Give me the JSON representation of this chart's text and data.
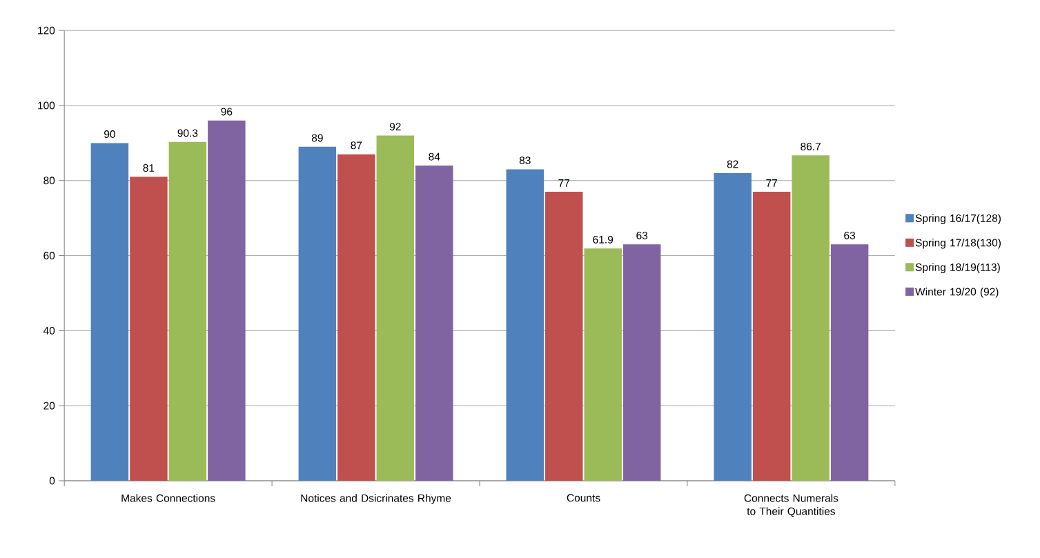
{
  "chart_data": {
    "type": "bar",
    "categories": [
      "Makes Connections",
      "Notices and Dsicrinates Rhyme",
      "Counts",
      "Connects Numerals to Their Quantities"
    ],
    "series": [
      {
        "name": "Spring 16/17(128)",
        "color": "#4f81bd",
        "values": [
          90,
          89,
          83,
          82
        ]
      },
      {
        "name": "Spring 17/18(130)",
        "color": "#c0504d",
        "values": [
          81,
          87,
          77,
          77
        ]
      },
      {
        "name": "Spring 18/19(113)",
        "color": "#9bbb59",
        "values": [
          90.3,
          92,
          61.9,
          86.7
        ]
      },
      {
        "name": "Winter 19/20 (92)",
        "color": "#8064a2",
        "values": [
          96,
          84,
          63,
          63
        ]
      }
    ],
    "ylim": [
      0,
      120
    ],
    "yticks": [
      0,
      20,
      40,
      60,
      80,
      100,
      120
    ],
    "grid": "y",
    "legend": "right",
    "data_labels": true
  }
}
